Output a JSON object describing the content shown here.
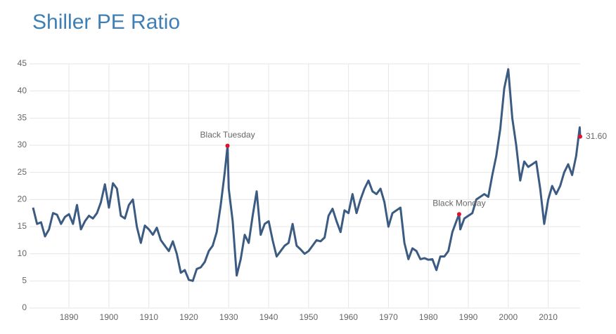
{
  "chart_data": {
    "type": "line",
    "title": "Shiller PE Ratio",
    "x": [
      1881,
      1882,
      1883,
      1884,
      1885,
      1886,
      1887,
      1888,
      1889,
      1890,
      1891,
      1892,
      1893,
      1894,
      1895,
      1896,
      1897,
      1898,
      1899,
      1900,
      1901,
      1902,
      1903,
      1904,
      1905,
      1906,
      1907,
      1908,
      1909,
      1910,
      1911,
      1912,
      1913,
      1914,
      1915,
      1916,
      1917,
      1918,
      1919,
      1920,
      1921,
      1922,
      1923,
      1924,
      1925,
      1926,
      1927,
      1928,
      1929,
      1929.7,
      1930,
      1931,
      1932,
      1933,
      1934,
      1935,
      1936,
      1937,
      1938,
      1939,
      1940,
      1941,
      1942,
      1943,
      1944,
      1945,
      1946,
      1947,
      1948,
      1949,
      1950,
      1951,
      1952,
      1953,
      1954,
      1955,
      1956,
      1957,
      1958,
      1959,
      1960,
      1961,
      1962,
      1963,
      1964,
      1965,
      1966,
      1967,
      1968,
      1969,
      1970,
      1971,
      1972,
      1973,
      1974,
      1975,
      1976,
      1977,
      1978,
      1979,
      1980,
      1981,
      1982,
      1983,
      1984,
      1985,
      1986,
      1987,
      1987.7,
      1988,
      1989,
      1990,
      1991,
      1992,
      1993,
      1994,
      1995,
      1996,
      1997,
      1998,
      1999,
      2000,
      2001,
      2002,
      2003,
      2004,
      2005,
      2006,
      2007,
      2008,
      2009,
      2010,
      2011,
      2012,
      2013,
      2014,
      2015,
      2016,
      2017,
      2017.9,
      2018
    ],
    "values": [
      18.5,
      15.5,
      15.8,
      13.2,
      14.5,
      17.5,
      17.2,
      15.5,
      16.8,
      17.3,
      15.5,
      19,
      14.5,
      16,
      17,
      16.5,
      17.5,
      19.5,
      22.8,
      18.5,
      23,
      22,
      17,
      16.5,
      19,
      20,
      15,
      12,
      15.2,
      14.5,
      13.5,
      14.8,
      12.5,
      11.5,
      10.5,
      12.3,
      10,
      6.5,
      7,
      5.2,
      5,
      7.2,
      7.5,
      8.5,
      10.5,
      11.5,
      14,
      19,
      25,
      29.9,
      22,
      16,
      6,
      9,
      13.5,
      12,
      17,
      21.5,
      13.5,
      15.5,
      16,
      12.5,
      9.5,
      10.5,
      11.5,
      12,
      15.5,
      11.5,
      10.8,
      10,
      10.5,
      11.5,
      12.5,
      12.3,
      13,
      17,
      18.3,
      16,
      14,
      18,
      17.5,
      21,
      17.5,
      20,
      22,
      23.5,
      21.5,
      21,
      22,
      19.5,
      15,
      17.5,
      18,
      18.5,
      12,
      9,
      11,
      10.5,
      9,
      9.2,
      8.9,
      9,
      7,
      9.5,
      9.5,
      10.5,
      14,
      16,
      17.3,
      14.5,
      16.5,
      17,
      17.5,
      20,
      20.5,
      21,
      20.5,
      24.5,
      28,
      33,
      40.5,
      44,
      35,
      30,
      23.5,
      27,
      26,
      26.5,
      27,
      22,
      15.5,
      20,
      22.5,
      21,
      22.5,
      25,
      26.5,
      24.5,
      28,
      33.3,
      31.6
    ],
    "color": "#3b5b82",
    "xlim": [
      1881,
      2018
    ],
    "ylim": [
      0,
      45
    ],
    "xticks": [
      1890,
      1900,
      1910,
      1920,
      1930,
      1940,
      1950,
      1960,
      1970,
      1980,
      1990,
      2000,
      2010
    ],
    "yticks": [
      0,
      5,
      10,
      15,
      20,
      25,
      30,
      35,
      40,
      45
    ],
    "grid": true,
    "annotations": [
      {
        "label": "Black Tuesday",
        "x": 1929.7,
        "y": 29.9
      },
      {
        "label": "Black Monday",
        "x": 1987.7,
        "y": 17.3
      },
      {
        "label": "31.60",
        "x": 2018,
        "y": 31.6
      }
    ],
    "annotation_color": "#e0112b"
  }
}
